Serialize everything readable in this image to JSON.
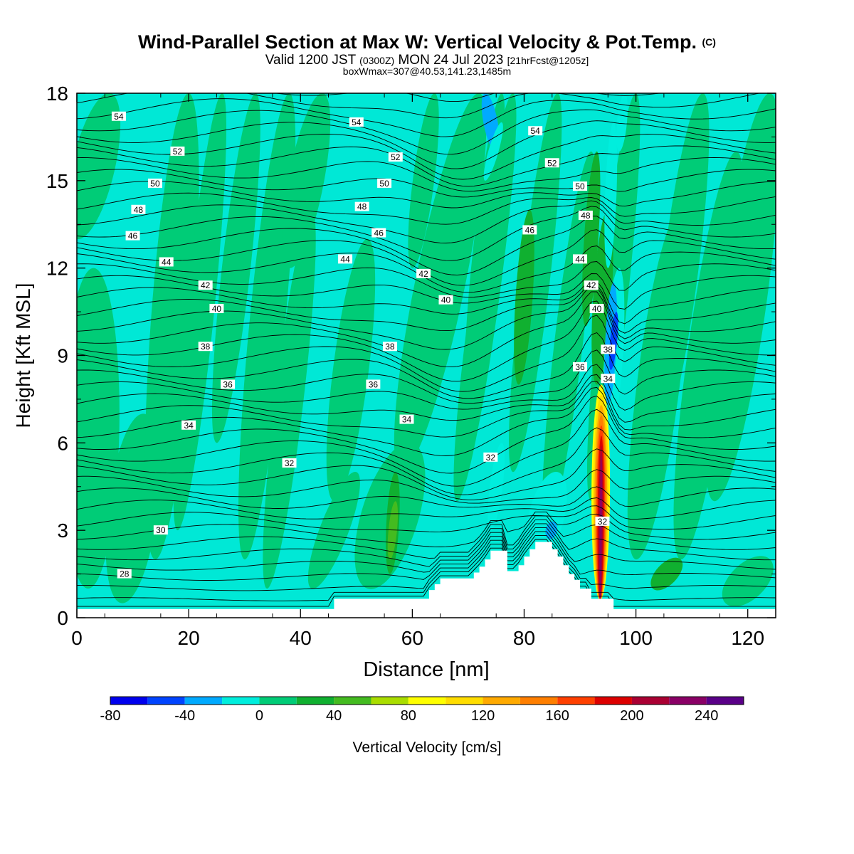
{
  "header": {
    "title": "Wind-Parallel Section at Max W: Vertical Velocity & Pot.Temp.",
    "copyright": "(C)",
    "valid_prefix": "Valid 1200 JST",
    "valid_utc": "(0300Z)",
    "valid_date": "MON 24 Jul 2023",
    "forecast": "[21hrFcst@1205z]",
    "boxline": "boxWmax=307@40.53,141.23,1485m"
  },
  "colors": {
    "bins": [
      "#0000ee",
      "#0044ff",
      "#00aaff",
      "#00eedd",
      "#00cc77",
      "#10b030",
      "#44bb20",
      "#aadd00",
      "#ffff00",
      "#ffdd00",
      "#ffaa00",
      "#ff7f00",
      "#ff4000",
      "#dd0000",
      "#aa0033",
      "#8a0066",
      "#5a0088"
    ],
    "background": "#00e8d6",
    "terrain": "#ffffff",
    "contour": "#000000"
  },
  "chart_data": {
    "type": "heatmap",
    "xlabel": "Distance [nm]",
    "ylabel": "Height [Kft MSL]",
    "xlim": [
      0,
      125
    ],
    "ylim": [
      0,
      18
    ],
    "x_ticks": [
      "0",
      "20",
      "40",
      "60",
      "80",
      "100",
      "120"
    ],
    "y_ticks": [
      "0",
      "3",
      "6",
      "9",
      "12",
      "15",
      "18"
    ],
    "colorbar": {
      "label": "Vertical Velocity [cm/s]",
      "tick_labels": [
        "-80",
        "-40",
        "0",
        "40",
        "80",
        "120",
        "160",
        "200",
        "240"
      ],
      "bounds": [
        -80,
        260
      ],
      "step": 20
    },
    "terrain_profile": [
      [
        0,
        0.3
      ],
      [
        46,
        0.3
      ],
      [
        46,
        0.65
      ],
      [
        63,
        0.65
      ],
      [
        63,
        0.95
      ],
      [
        64,
        0.95
      ],
      [
        64,
        1.15
      ],
      [
        65,
        1.15
      ],
      [
        65,
        1.35
      ],
      [
        71,
        1.35
      ],
      [
        71,
        1.55
      ],
      [
        72,
        1.55
      ],
      [
        72,
        1.75
      ],
      [
        73,
        1.75
      ],
      [
        73,
        2.0
      ],
      [
        74,
        2.0
      ],
      [
        74,
        2.3
      ],
      [
        77,
        2.3
      ],
      [
        77,
        1.6
      ],
      [
        79,
        1.6
      ],
      [
        79,
        1.8
      ],
      [
        80,
        1.8
      ],
      [
        80,
        2.1
      ],
      [
        81,
        2.1
      ],
      [
        81,
        2.35
      ],
      [
        82,
        2.35
      ],
      [
        82,
        2.6
      ],
      [
        85,
        2.6
      ],
      [
        85,
        2.35
      ],
      [
        86,
        2.35
      ],
      [
        86,
        2.1
      ],
      [
        87,
        2.1
      ],
      [
        87,
        1.8
      ],
      [
        88,
        1.8
      ],
      [
        88,
        1.5
      ],
      [
        89,
        1.5
      ],
      [
        89,
        1.3
      ],
      [
        90,
        1.3
      ],
      [
        90,
        1.0
      ],
      [
        92,
        1.0
      ],
      [
        92,
        0.65
      ],
      [
        96,
        0.65
      ],
      [
        96,
        0.3
      ],
      [
        125,
        0.3
      ]
    ],
    "theta_contours": {
      "levels": [
        28,
        30,
        32,
        34,
        36,
        38,
        40,
        42,
        44,
        46,
        48,
        50,
        52,
        54
      ],
      "labels": [
        {
          "text": "54",
          "x": 7.5,
          "y": 17.2
        },
        {
          "text": "54",
          "x": 50,
          "y": 17.0
        },
        {
          "text": "54",
          "x": 82,
          "y": 16.7
        },
        {
          "text": "52",
          "x": 18,
          "y": 16.0
        },
        {
          "text": "52",
          "x": 57,
          "y": 15.8
        },
        {
          "text": "52",
          "x": 85,
          "y": 15.6
        },
        {
          "text": "50",
          "x": 14,
          "y": 14.9
        },
        {
          "text": "50",
          "x": 55,
          "y": 14.9
        },
        {
          "text": "50",
          "x": 90,
          "y": 14.8
        },
        {
          "text": "48",
          "x": 11,
          "y": 14.0
        },
        {
          "text": "48",
          "x": 51,
          "y": 14.1
        },
        {
          "text": "48",
          "x": 91,
          "y": 13.8
        },
        {
          "text": "46",
          "x": 10,
          "y": 13.1
        },
        {
          "text": "46",
          "x": 54,
          "y": 13.2
        },
        {
          "text": "46",
          "x": 81,
          "y": 13.3
        },
        {
          "text": "44",
          "x": 16,
          "y": 12.2
        },
        {
          "text": "44",
          "x": 48,
          "y": 12.3
        },
        {
          "text": "44",
          "x": 90,
          "y": 12.3
        },
        {
          "text": "42",
          "x": 23,
          "y": 11.4
        },
        {
          "text": "42",
          "x": 62,
          "y": 11.8
        },
        {
          "text": "42",
          "x": 92,
          "y": 11.4
        },
        {
          "text": "40",
          "x": 25,
          "y": 10.6
        },
        {
          "text": "40",
          "x": 66,
          "y": 10.9
        },
        {
          "text": "40",
          "x": 93,
          "y": 10.6
        },
        {
          "text": "38",
          "x": 23,
          "y": 9.3
        },
        {
          "text": "38",
          "x": 56,
          "y": 9.3
        },
        {
          "text": "38",
          "x": 95,
          "y": 9.2
        },
        {
          "text": "36",
          "x": 27,
          "y": 8.0
        },
        {
          "text": "36",
          "x": 53,
          "y": 8.0
        },
        {
          "text": "36",
          "x": 90,
          "y": 8.6
        },
        {
          "text": "34",
          "x": 20,
          "y": 6.6
        },
        {
          "text": "34",
          "x": 59,
          "y": 6.8
        },
        {
          "text": "34",
          "x": 95,
          "y": 8.2
        },
        {
          "text": "32",
          "x": 38,
          "y": 5.3
        },
        {
          "text": "32",
          "x": 74,
          "y": 5.5
        },
        {
          "text": "32",
          "x": 94,
          "y": 3.3
        },
        {
          "text": "30",
          "x": 15,
          "y": 3.0
        },
        {
          "text": "28",
          "x": 8.5,
          "y": 1.5
        }
      ]
    }
  }
}
